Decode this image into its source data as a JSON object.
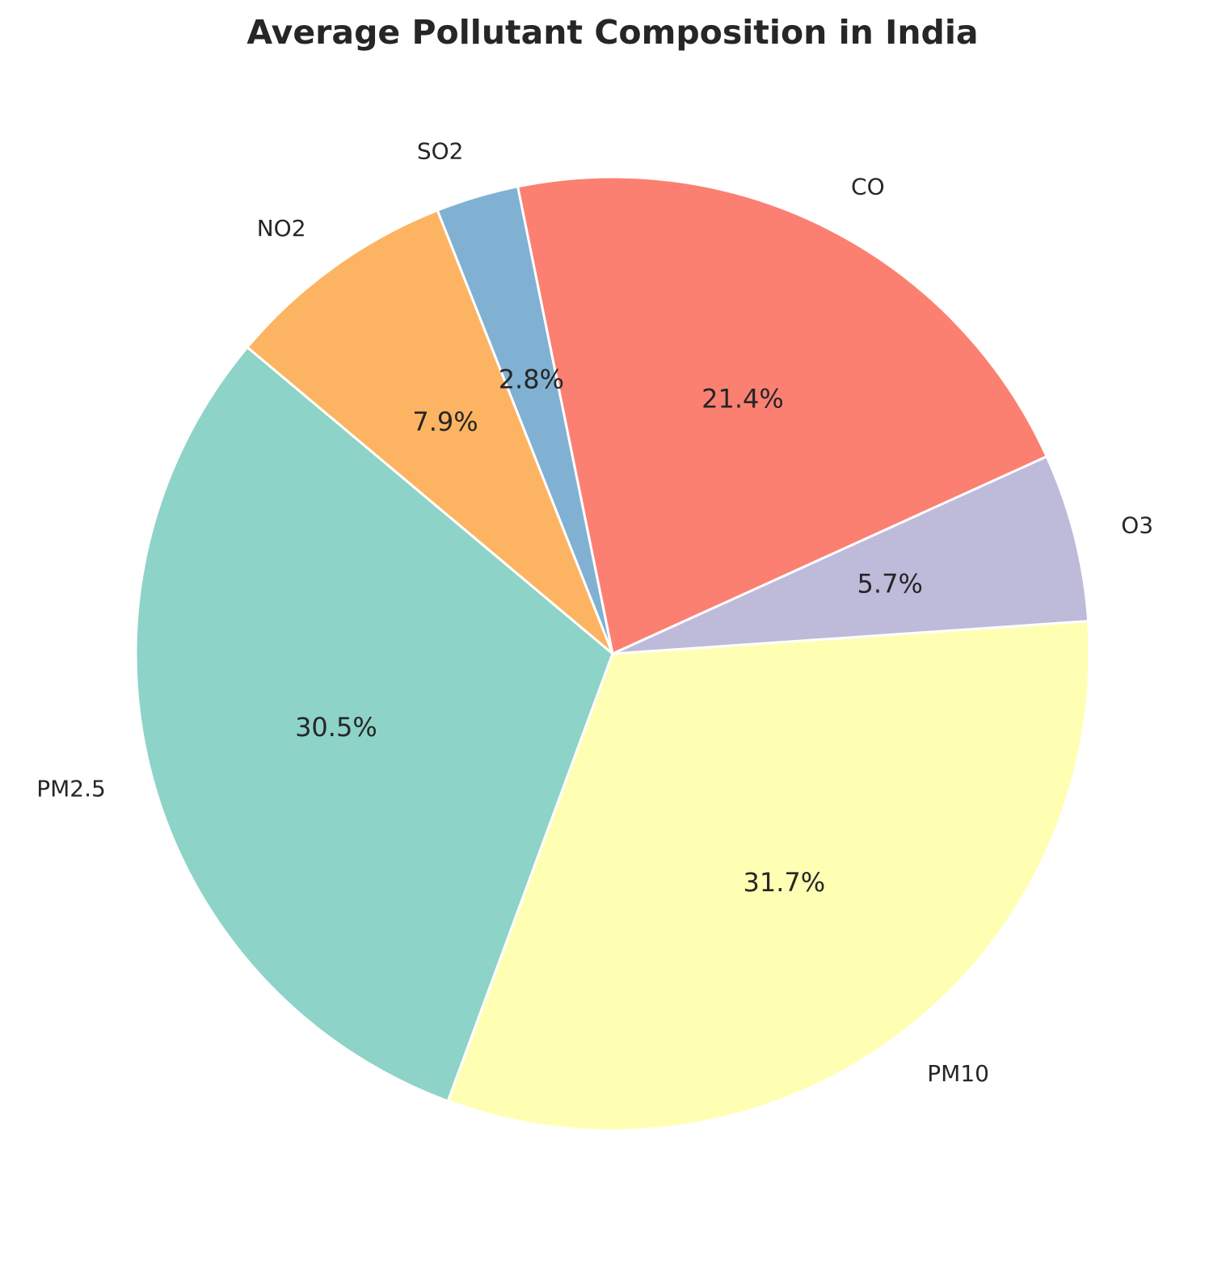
{
  "chart_data": {
    "type": "pie",
    "title": "Average Pollutant Composition in India",
    "categories": [
      "PM2.5",
      "PM10",
      "O3",
      "CO",
      "SO2",
      "NO2"
    ],
    "values": [
      30.5,
      31.7,
      5.7,
      21.4,
      2.8,
      7.9
    ],
    "value_labels": [
      "30.5%",
      "31.7%",
      "5.7%",
      "21.4%",
      "2.8%",
      "7.9%"
    ],
    "colors": [
      "#8dd3c7",
      "#ffffb3",
      "#bebada",
      "#fb8072",
      "#80b1d3",
      "#fdb462"
    ],
    "start_angle_deg": 140,
    "direction": "counterclockwise",
    "legend": "none"
  }
}
